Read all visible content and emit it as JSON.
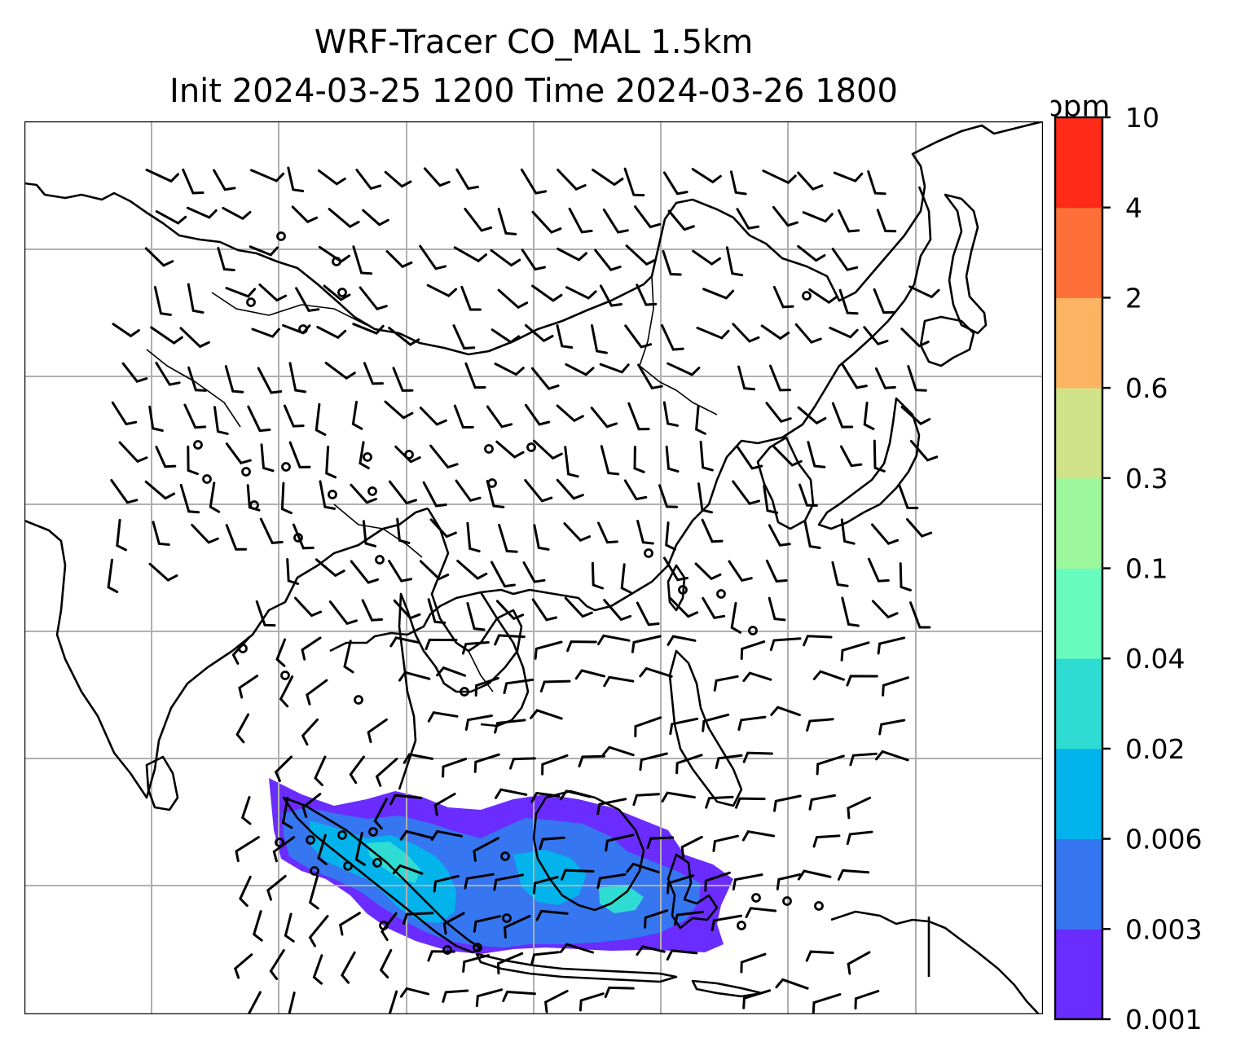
{
  "figure": {
    "title_line1": "WRF-Tracer CO_MAL 1.5km",
    "title_line2": "Init 2024-03-25 1200 Time 2024-03-26 1800"
  },
  "colorbar": {
    "unit": "ppm",
    "tick_labels": [
      "0.001",
      "0.003",
      "0.006",
      "0.02",
      "0.04",
      "0.1",
      "0.3",
      "0.6",
      "2",
      "4",
      "10"
    ],
    "colors": [
      "#6a2cff",
      "#3676f0",
      "#03b3ec",
      "#2fdcd4",
      "#68fbbe",
      "#9cf79d",
      "#d1e388",
      "#fdb462",
      "#fe7037",
      "#ff2a17"
    ]
  },
  "map": {
    "gridlines": true,
    "gridline_color": "#b0b0b0",
    "coastline_color": "#000000",
    "barb_color": "#000000",
    "plume_region": "Sumatra, Malay Peninsula and western Borneo"
  }
}
